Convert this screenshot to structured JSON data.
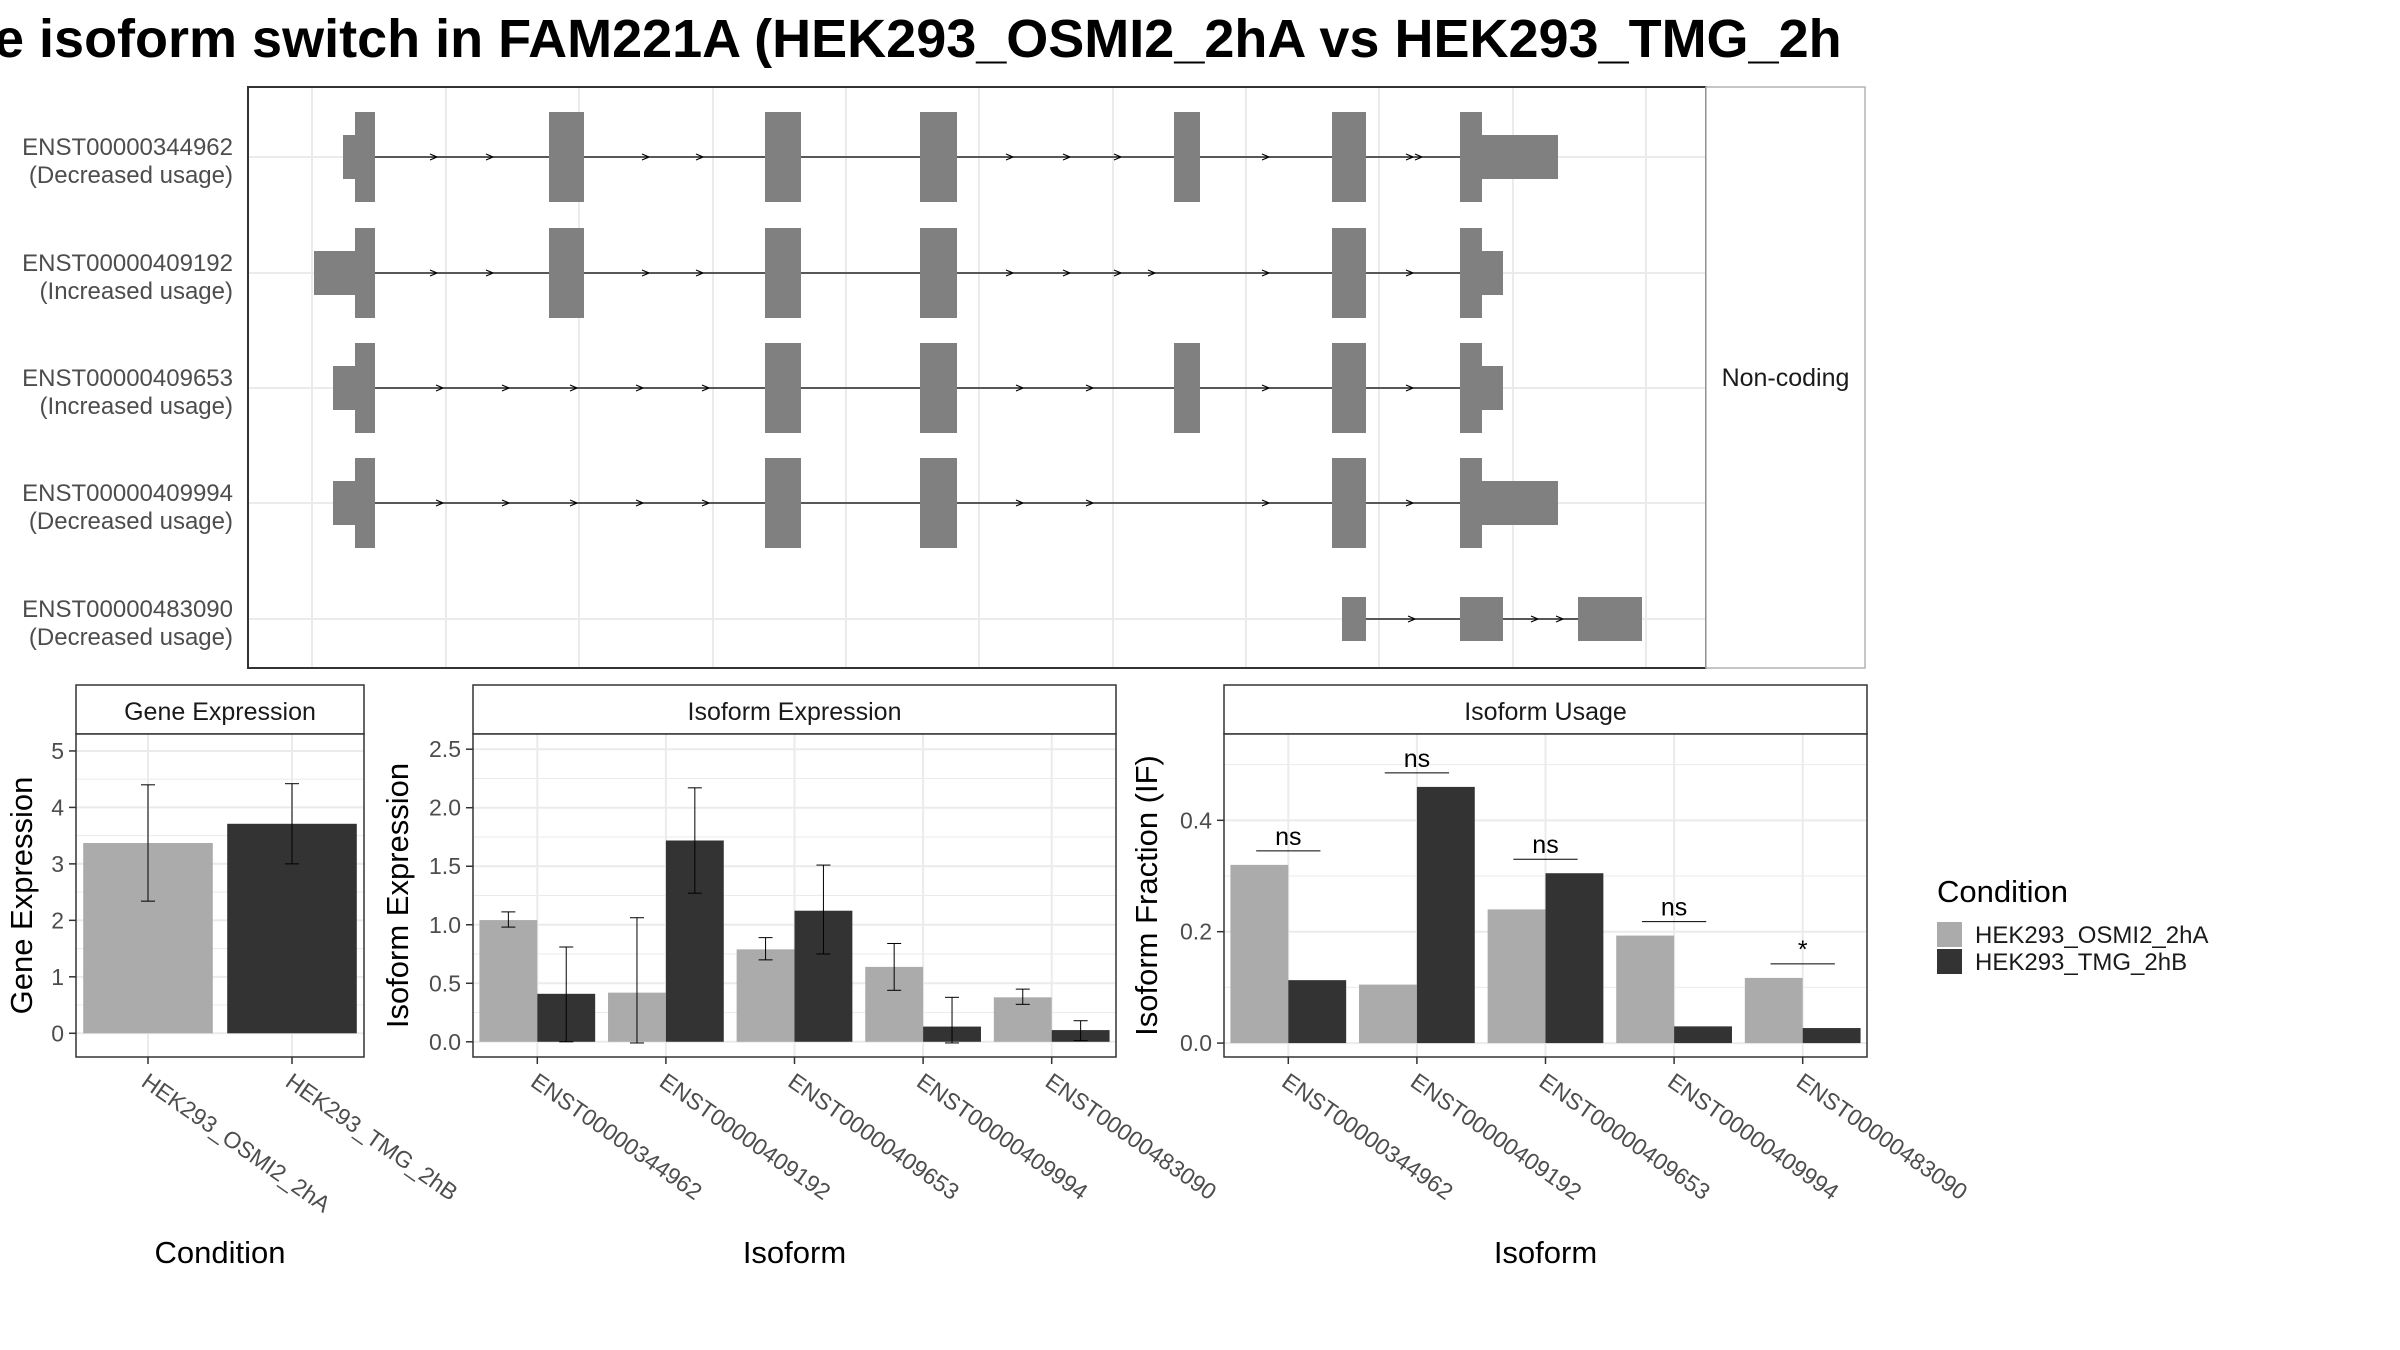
{
  "title": "e isoform switch in FAM221A (HEK293_OSMI2_2hA vs HEK293_TMG_2h",
  "colors": {
    "osmi": "#ababab",
    "tmg": "#333333",
    "exon": "#808080",
    "grid": "#ebebeb",
    "panel_border": "#333333"
  },
  "chart_data": [
    {
      "type": "gene-structure",
      "strip_label": "Non-coding",
      "transcripts": [
        {
          "id": "ENST00000344962",
          "usage": "(Decreased usage)"
        },
        {
          "id": "ENST00000409192",
          "usage": "(Increased usage)"
        },
        {
          "id": "ENST00000409653",
          "usage": "(Increased usage)"
        },
        {
          "id": "ENST00000409994",
          "usage": "(Decreased usage)"
        },
        {
          "id": "ENST00000483090",
          "usage": "(Decreased usage)"
        }
      ]
    },
    {
      "type": "bar",
      "title": "Gene Expression",
      "xlabel": "Condition",
      "ylabel": "Gene Expression",
      "ylim": [
        -0.42,
        5.3
      ],
      "yticks": [
        "0",
        "1",
        "2",
        "3",
        "4",
        "5"
      ],
      "categories": [
        "HEK293_OSMI2_2hA",
        "HEK293_TMG_2hB"
      ],
      "series": [
        {
          "values": [
            3.37,
            3.71
          ],
          "err_low": [
            2.34,
            3.0
          ],
          "err_high": [
            4.4,
            4.42
          ]
        }
      ]
    },
    {
      "type": "bar",
      "title": "Isoform Expression",
      "xlabel": "Isoform",
      "ylabel": "Isoform Expression",
      "ylim": [
        -0.13,
        2.63
      ],
      "yticks": [
        "0.0",
        "0.5",
        "1.0",
        "1.5",
        "2.0",
        "2.5"
      ],
      "categories": [
        "ENST00000344962",
        "ENST00000409192",
        "ENST00000409653",
        "ENST00000409994",
        "ENST00000483090"
      ],
      "series": [
        {
          "name": "HEK293_OSMI2_2hA",
          "values": [
            1.04,
            0.42,
            0.79,
            0.64,
            0.38
          ],
          "err_low": [
            0.98,
            -0.01,
            0.7,
            0.44,
            0.32
          ],
          "err_high": [
            1.11,
            1.06,
            0.89,
            0.84,
            0.45
          ]
        },
        {
          "name": "HEK293_TMG_2hB",
          "values": [
            0.41,
            1.72,
            1.12,
            0.13,
            0.1
          ],
          "err_low": [
            0.0,
            1.27,
            0.75,
            -0.01,
            0.01
          ],
          "err_high": [
            0.81,
            2.17,
            1.51,
            0.38,
            0.18
          ]
        }
      ]
    },
    {
      "type": "bar",
      "title": "Isoform Usage",
      "xlabel": "Isoform",
      "ylabel": "Isoform Fraction (IF)",
      "ylim": [
        -0.025,
        0.555
      ],
      "yticks": [
        "0.0",
        "0.2",
        "0.4"
      ],
      "categories": [
        "ENST00000344962",
        "ENST00000409192",
        "ENST00000409653",
        "ENST00000409994",
        "ENST00000483090"
      ],
      "series": [
        {
          "name": "HEK293_OSMI2_2hA",
          "values": [
            0.32,
            0.105,
            0.24,
            0.193,
            0.117
          ]
        },
        {
          "name": "HEK293_TMG_2hB",
          "values": [
            0.113,
            0.46,
            0.305,
            0.03,
            0.027
          ]
        }
      ],
      "significance": [
        "ns",
        "ns",
        "ns",
        "ns",
        "*"
      ]
    }
  ],
  "legend": {
    "title": "Condition",
    "items": [
      "HEK293_OSMI2_2hA",
      "HEK293_TMG_2hB"
    ]
  }
}
